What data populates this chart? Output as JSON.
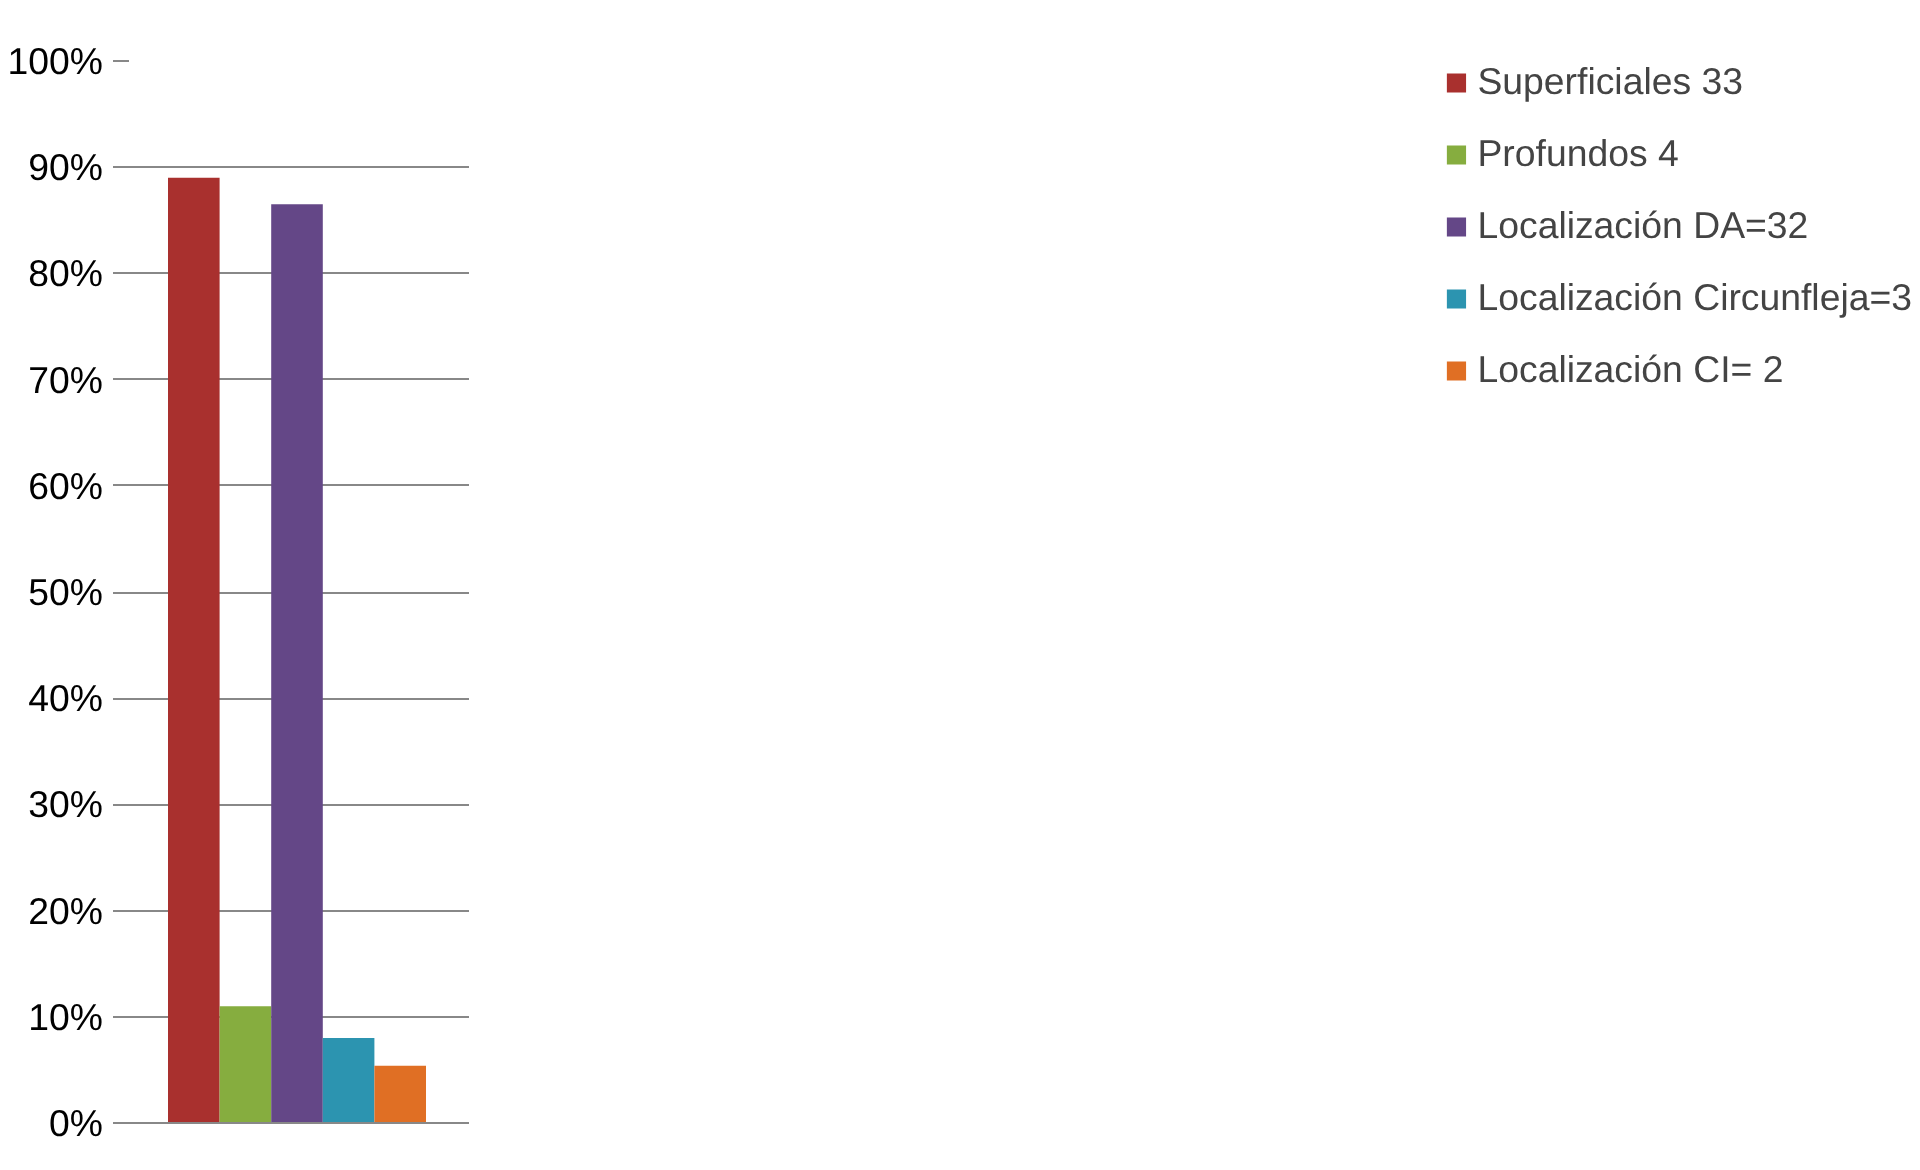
{
  "chart_data": {
    "type": "bar",
    "categories": [
      null
    ],
    "series": [
      {
        "name": "Superficiales 33",
        "color": "#a9302e",
        "values": [
          89
        ]
      },
      {
        "name": "Profundos 4",
        "color": "#86ad3f",
        "values": [
          11
        ]
      },
      {
        "name": "Localización DA=32",
        "color": "#644787",
        "values": [
          86.5
        ]
      },
      {
        "name": "Localización Circunfleja=3",
        "color": "#2c94b0",
        "values": [
          8
        ]
      },
      {
        "name": "Localización CI= 2",
        "color": "#e06f24",
        "values": [
          5.4
        ]
      }
    ],
    "ylim": [
      0,
      100
    ],
    "yticks": [
      {
        "value": 0,
        "label": "0%"
      },
      {
        "value": 10,
        "label": "10%"
      },
      {
        "value": 20,
        "label": "20%"
      },
      {
        "value": 30,
        "label": "30%"
      },
      {
        "value": 40,
        "label": "40%"
      },
      {
        "value": 50,
        "label": "50%"
      },
      {
        "value": 60,
        "label": "60%"
      },
      {
        "value": 70,
        "label": "70%"
      },
      {
        "value": 80,
        "label": "80%"
      },
      {
        "value": 90,
        "label": "90%"
      },
      {
        "value": 100,
        "label": "100%"
      }
    ],
    "grid": "y",
    "legend": "right"
  }
}
